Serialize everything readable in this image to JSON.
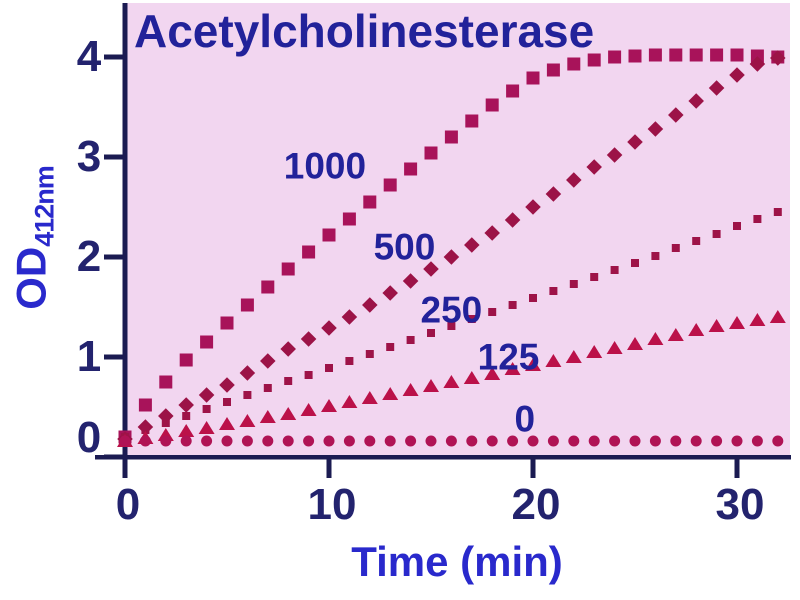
{
  "chart_data": {
    "type": "scatter",
    "title": "Acetylcholinesterase",
    "xlabel": "Time (min)",
    "ylabel": "OD",
    "ylabel_subscript": "412nm",
    "xlim": [
      0,
      32.5
    ],
    "ylim": [
      0,
      4.5
    ],
    "x_ticks": [
      0,
      10,
      20,
      30
    ],
    "y_ticks": [
      0,
      1,
      2,
      3,
      4
    ],
    "grid": false,
    "legend_position": "inline-labels",
    "plot_background": "#F2D6F0",
    "axis_color": "#1B1B52",
    "series": [
      {
        "name": "1000",
        "marker": "square",
        "color": "#A8135A",
        "label_x": 9.8,
        "label_y": 2.91,
        "x_start": 0,
        "x_step": 1,
        "values": [
          0.2,
          0.52,
          0.75,
          0.97,
          1.15,
          1.34,
          1.52,
          1.7,
          1.88,
          2.05,
          2.22,
          2.38,
          2.55,
          2.72,
          2.88,
          3.04,
          3.2,
          3.36,
          3.52,
          3.66,
          3.79,
          3.87,
          3.93,
          3.97,
          4.0,
          4.01,
          4.02,
          4.02,
          4.02,
          4.02,
          4.02,
          4.01,
          4.0
        ]
      },
      {
        "name": "500",
        "marker": "diamond",
        "color": "#9C1347",
        "label_x": 13.7,
        "label_y": 2.1,
        "x_start": 0,
        "x_step": 1,
        "values": [
          0.18,
          0.3,
          0.41,
          0.52,
          0.62,
          0.72,
          0.84,
          0.96,
          1.08,
          1.18,
          1.29,
          1.4,
          1.52,
          1.64,
          1.76,
          1.88,
          2.0,
          2.12,
          2.24,
          2.37,
          2.5,
          2.63,
          2.77,
          2.9,
          3.02,
          3.15,
          3.28,
          3.42,
          3.56,
          3.69,
          3.82,
          3.93,
          3.99
        ]
      },
      {
        "name": "250",
        "marker": "small-square",
        "color": "#9E1348",
        "label_x": 16.0,
        "label_y": 1.47,
        "x_start": 0,
        "x_step": 1,
        "values": [
          0.2,
          0.27,
          0.34,
          0.41,
          0.48,
          0.55,
          0.62,
          0.69,
          0.76,
          0.82,
          0.89,
          0.96,
          1.03,
          1.1,
          1.17,
          1.24,
          1.31,
          1.38,
          1.45,
          1.52,
          1.59,
          1.66,
          1.73,
          1.8,
          1.87,
          1.94,
          2.01,
          2.09,
          2.16,
          2.23,
          2.31,
          2.38,
          2.45
        ]
      },
      {
        "name": "125",
        "marker": "triangle",
        "color": "#BB1149",
        "label_x": 18.8,
        "label_y": 1.0,
        "x_start": 0,
        "x_step": 1,
        "values": [
          0.16,
          0.19,
          0.22,
          0.26,
          0.29,
          0.33,
          0.36,
          0.4,
          0.43,
          0.47,
          0.51,
          0.55,
          0.59,
          0.63,
          0.67,
          0.71,
          0.75,
          0.79,
          0.83,
          0.88,
          0.92,
          0.96,
          1.0,
          1.05,
          1.09,
          1.13,
          1.18,
          1.22,
          1.27,
          1.31,
          1.34,
          1.37,
          1.4
        ]
      },
      {
        "name": "0",
        "marker": "circle",
        "color": "#B01355",
        "label_x": 19.6,
        "label_y": 0.38,
        "x_start": 0,
        "x_step": 1,
        "values": [
          0.16,
          0.16,
          0.16,
          0.16,
          0.16,
          0.16,
          0.16,
          0.16,
          0.16,
          0.16,
          0.16,
          0.16,
          0.16,
          0.16,
          0.16,
          0.16,
          0.16,
          0.16,
          0.16,
          0.16,
          0.16,
          0.16,
          0.16,
          0.16,
          0.16,
          0.16,
          0.16,
          0.16,
          0.16,
          0.16,
          0.16,
          0.16,
          0.16
        ]
      }
    ]
  },
  "colors": {
    "title_text": "#22229A",
    "tick_text": "#23236E",
    "axis_title_text": "#2929CC",
    "axis_line": "#1B1B52",
    "plot_background": "#F2D6F0",
    "page_background": "#FFFFFF"
  }
}
